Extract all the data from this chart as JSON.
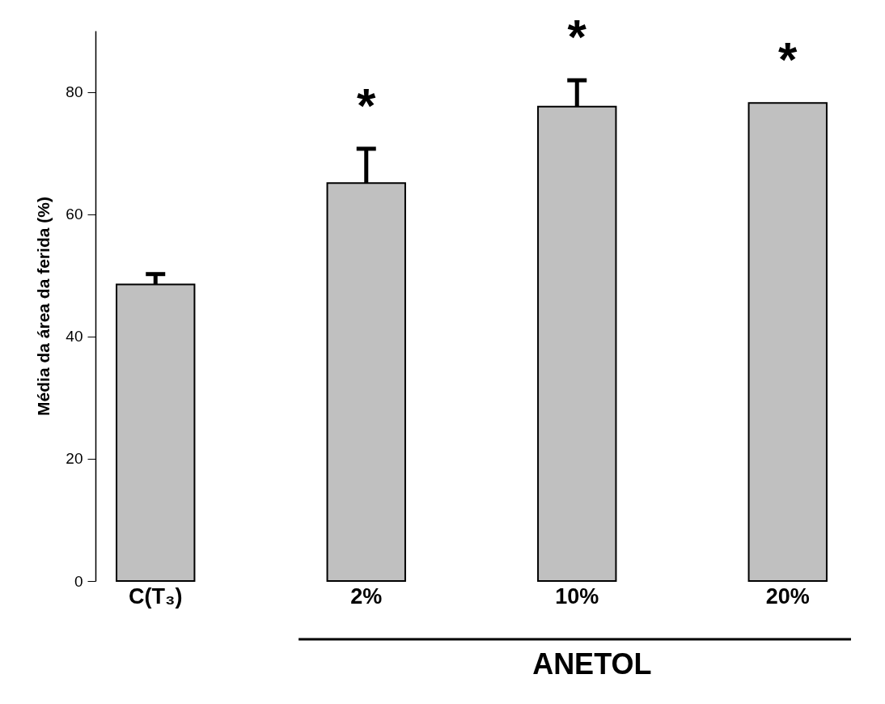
{
  "chart_data": {
    "type": "bar",
    "ylabel": "Média da área da ferida (%)",
    "categories": [
      "C(T₃)",
      "2%",
      "10%",
      "20%"
    ],
    "values": [
      48.5,
      65.1,
      77.6,
      78.2
    ],
    "errors": [
      [
        48.5,
        50.2
      ],
      [
        65.1,
        70.7
      ],
      [
        77.6,
        81.9
      ],
      null
    ],
    "colors": [
      "#c0c0c0",
      "#c0c0c0",
      "#c0c0c0",
      "#c0c0c0"
    ],
    "ylim": [
      0,
      90
    ],
    "yticks": [
      0,
      20,
      40,
      60,
      80
    ],
    "grid": false,
    "annotations": [
      "*",
      "*",
      "*",
      "ANETOL"
    ]
  }
}
